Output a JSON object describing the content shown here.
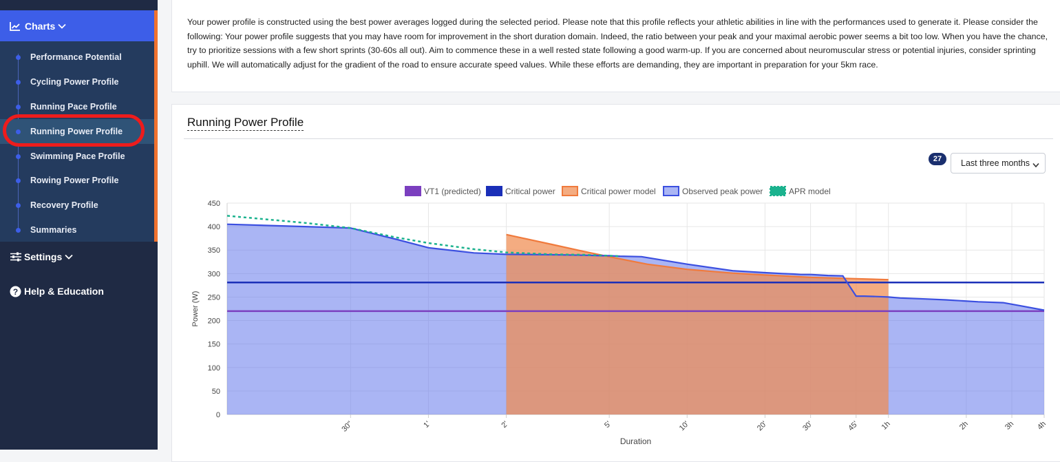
{
  "sidebar": {
    "charts_label": "Charts",
    "sub_items": [
      {
        "label": "Performance Potential"
      },
      {
        "label": "Cycling Power Profile"
      },
      {
        "label": "Running Pace Profile"
      },
      {
        "label": "Running Power Profile"
      },
      {
        "label": "Swimming Pace Profile"
      },
      {
        "label": "Rowing Power Profile"
      },
      {
        "label": "Recovery Profile"
      },
      {
        "label": "Summaries"
      }
    ],
    "active_item": "Running Power Profile",
    "settings_label": "Settings",
    "help_label": "Help & Education"
  },
  "description": "Your power profile is constructed using the best power averages logged during the selected period. Please note that this profile reflects your athletic abilities in line with the performances used to generate it. Please consider the following: Your power profile suggests that you may have room for improvement in the short duration domain. Indeed, the ratio between your peak and your maximal aerobic power seems a bit too low. When you have the chance, try to prioritize sessions with a few short sprints (30-60s all out). Aim to commence these in a well rested state following a good warm-up. If you are concerned about neuromuscular stress or potential injuries, consider sprinting uphill. We will automatically adjust for the gradient of the road to ensure accurate speed values. While these efforts are demanding, they are important in preparation for your 5km race.",
  "section": {
    "title": "Running Power Profile",
    "count_badge": "27",
    "period_value": "Last three months"
  },
  "colors": {
    "accent": "#3d5ee8",
    "highlight": "#ee1c1c",
    "vt1": "#7b3fbf",
    "critical_power": "#1a2fb8",
    "cp_model": "#f07a3c",
    "observed": "#3b4fe0",
    "apr": "#1bb28e"
  },
  "chart_data": {
    "type": "area",
    "xlabel": "Duration",
    "ylabel": "Power (W)",
    "x_scale": "log",
    "ylim": [
      0,
      450
    ],
    "y_ticks": [
      0,
      50,
      100,
      150,
      200,
      250,
      300,
      350,
      400,
      450
    ],
    "x_ticks": [
      {
        "label": "30''",
        "seconds": 30
      },
      {
        "label": "1'",
        "seconds": 60
      },
      {
        "label": "2'",
        "seconds": 120
      },
      {
        "label": "5'",
        "seconds": 300
      },
      {
        "label": "10'",
        "seconds": 600
      },
      {
        "label": "20'",
        "seconds": 1200
      },
      {
        "label": "30'",
        "seconds": 1800
      },
      {
        "label": "45'",
        "seconds": 2700
      },
      {
        "label": "1h",
        "seconds": 3600
      },
      {
        "label": "2h",
        "seconds": 7200
      },
      {
        "label": "3h",
        "seconds": 10800
      },
      {
        "label": "4h",
        "seconds": 14400
      }
    ],
    "legend": [
      "VT1 (predicted)",
      "Critical power",
      "Critical power model",
      "Observed peak power",
      "APR model"
    ],
    "series": [
      {
        "name": "VT1 (predicted)",
        "kind": "hline",
        "value": 220
      },
      {
        "name": "Critical power",
        "kind": "hline",
        "value": 281
      },
      {
        "name": "Critical power model",
        "kind": "area",
        "x": [
          120,
          180,
          240,
          300,
          420,
          600,
          900,
          1200,
          1800,
          2700,
          3600
        ],
        "y": [
          383,
          362,
          347,
          336,
          320,
          309,
          301,
          297,
          292,
          289,
          287
        ]
      },
      {
        "name": "Observed peak power",
        "kind": "area",
        "x": [
          10,
          20,
          30,
          45,
          60,
          90,
          120,
          180,
          240,
          280,
          300,
          330,
          400,
          600,
          900,
          1200,
          1400,
          1550,
          1650,
          1800,
          2100,
          2400,
          2700,
          2900,
          3300,
          3600,
          4000,
          5000,
          6000,
          8000,
          10000,
          11500,
          14400
        ],
        "y": [
          405,
          400,
          397,
          373,
          355,
          344,
          341,
          340,
          339,
          338,
          338,
          337,
          336,
          320,
          306,
          302,
          300,
          299,
          298,
          298,
          296,
          295,
          252,
          252,
          251,
          250,
          248,
          246,
          244,
          240,
          238,
          232,
          222
        ]
      },
      {
        "name": "APR model",
        "kind": "dashed",
        "x": [
          10,
          20,
          30,
          45,
          60,
          90,
          120,
          180,
          240,
          300,
          330
        ],
        "y": [
          423,
          408,
          397,
          377,
          365,
          352,
          345,
          341,
          340,
          338,
          337
        ]
      }
    ]
  }
}
